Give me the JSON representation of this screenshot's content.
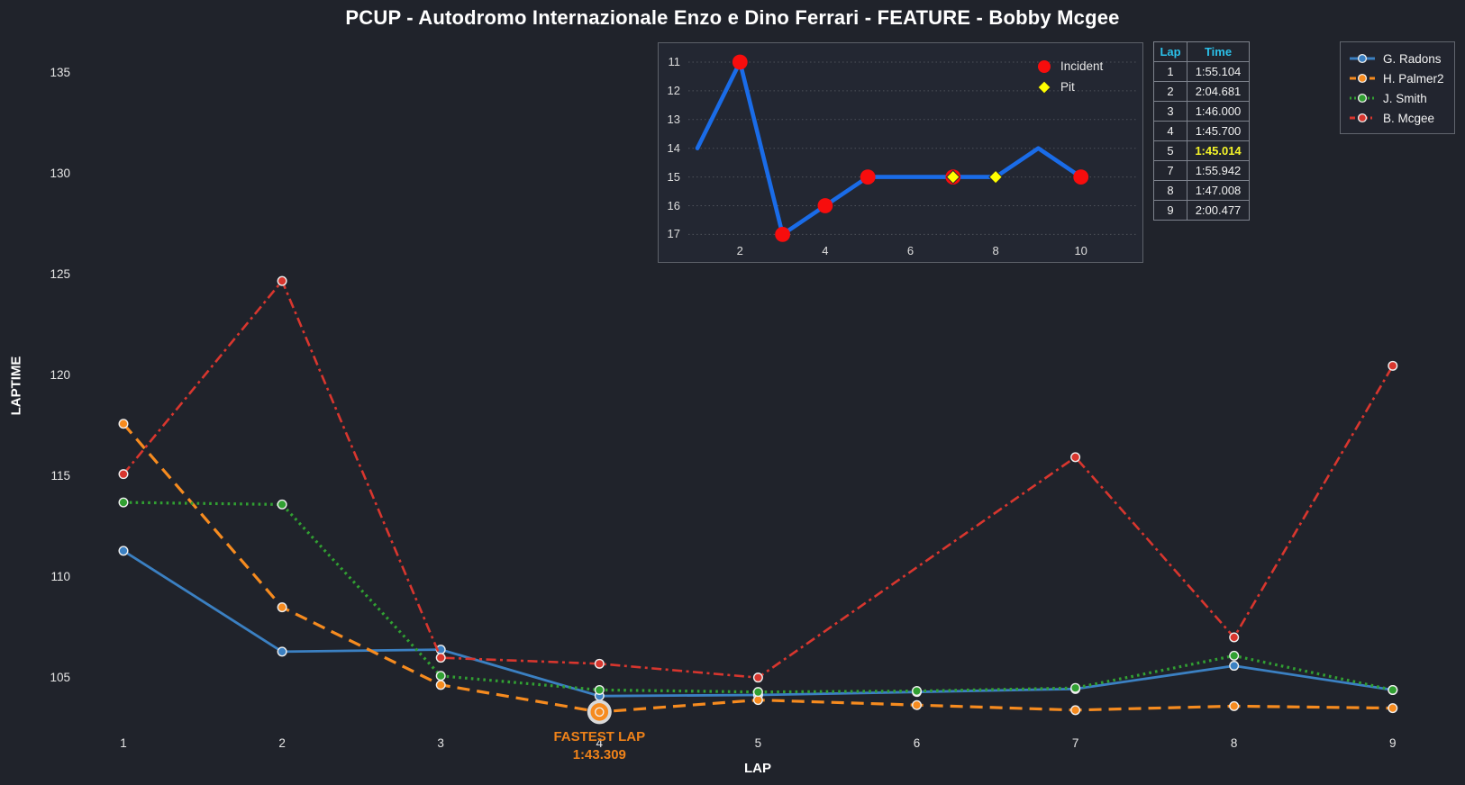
{
  "title": "PCUP - Autodromo Internazionale Enzo e Dino Ferrari - FEATURE - Bobby Mcgee",
  "chart_data": [
    {
      "id": "laptime-by-lap",
      "type": "line",
      "title": "",
      "xlabel": "LAP",
      "ylabel": "LAPTIME",
      "x": [
        1,
        2,
        3,
        4,
        5,
        6,
        7,
        8,
        9
      ],
      "xticks": [
        "1",
        "2",
        "3",
        "4",
        "5",
        "6",
        "7",
        "8",
        "9"
      ],
      "yticks": [
        "105",
        "110",
        "115",
        "120",
        "125",
        "130",
        "135"
      ],
      "ylim": [
        102.9,
        136.8
      ],
      "grid": false,
      "legend_position": "top-right",
      "series": [
        {
          "name": "G. Radons",
          "color": "#3b80c2",
          "style": "solid",
          "values": [
            111.3,
            106.3,
            106.4,
            104.1,
            104.15,
            104.3,
            104.45,
            105.6,
            104.4
          ]
        },
        {
          "name": "H. Palmer2",
          "color": "#f68b1f",
          "style": "dashed",
          "values": [
            117.6,
            108.5,
            104.65,
            103.309,
            103.9,
            103.65,
            103.4,
            103.6,
            103.5
          ]
        },
        {
          "name": "J. Smith",
          "color": "#31a032",
          "style": "dotted",
          "values": [
            113.7,
            113.6,
            105.1,
            104.4,
            104.3,
            104.35,
            104.5,
            106.1,
            104.4
          ]
        },
        {
          "name": "B. Mcgee",
          "color": "#d8362e",
          "style": "dashdot",
          "values": [
            115.104,
            124.681,
            106.0,
            105.7,
            105.014,
            null,
            115.942,
            107.008,
            120.477
          ]
        }
      ],
      "annotation": {
        "label": "FASTEST LAP",
        "time": "1:43.309",
        "series": "H. Palmer2",
        "lap": 4,
        "value": 103.309,
        "color": "#ef8219"
      }
    },
    {
      "id": "position-by-lap",
      "type": "line",
      "x": [
        1,
        2,
        3,
        4,
        5,
        6,
        7,
        8,
        9,
        10
      ],
      "positions": [
        14,
        11,
        17,
        16,
        15,
        15,
        15,
        15,
        14,
        15
      ],
      "yticks": [
        "11",
        "12",
        "13",
        "14",
        "15",
        "16",
        "17"
      ],
      "xticks": [
        "2",
        "4",
        "6",
        "8",
        "10"
      ],
      "y_inverted": true,
      "grid": "horizontal-dotted",
      "line_color": "#1a6ce8",
      "incident_laps": [
        2,
        3,
        4,
        5,
        7,
        10
      ],
      "pit_laps": [
        7,
        8
      ],
      "legend": [
        {
          "label": "Incident",
          "marker": "circle",
          "color": "#f70d0d"
        },
        {
          "label": "Pit",
          "marker": "diamond",
          "color": "#ffff00"
        }
      ]
    }
  ],
  "lap_table": {
    "headers": [
      "Lap",
      "Time"
    ],
    "rows": [
      [
        "1",
        "1:55.104"
      ],
      [
        "2",
        "2:04.681"
      ],
      [
        "3",
        "1:46.000"
      ],
      [
        "4",
        "1:45.700"
      ],
      [
        "5",
        "1:45.014"
      ],
      [
        "7",
        "1:55.942"
      ],
      [
        "8",
        "1:47.008"
      ],
      [
        "9",
        "2:00.477"
      ]
    ],
    "highlight_row_index": 4,
    "header_color": "#2bc1ea",
    "highlight_color": "#f5f52a"
  },
  "colors": {
    "background": "#20232b",
    "text": "#ffffff",
    "tick_text": "#e6e6e6",
    "panel_border": "#5d6169",
    "grid_dotted": "#4d515a",
    "marker_edge": "#f0f0f0",
    "incident": "#f70d0d",
    "pit": "#ffff00",
    "fastest_halo": "#d9d9d9"
  }
}
